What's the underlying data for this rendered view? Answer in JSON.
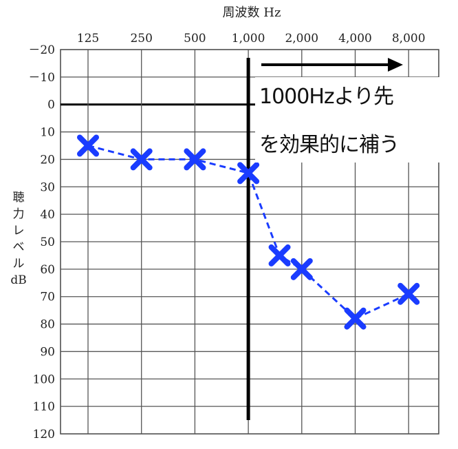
{
  "chart_data": {
    "type": "line",
    "title": "周波数 Hz",
    "ylabel_chars": [
      "聴",
      "力",
      "レ",
      "ベ",
      "ル",
      "dB"
    ],
    "x_tick_labels": [
      "125",
      "250",
      "500",
      "1,000",
      "2,000",
      "4,000",
      "8,000"
    ],
    "x_ticks_hz": [
      125,
      250,
      500,
      1000,
      2000,
      4000,
      8000
    ],
    "y_tick_labels": [
      "－20",
      "－10",
      "0",
      "10",
      "20",
      "30",
      "40",
      "50",
      "60",
      "70",
      "80",
      "90",
      "100",
      "110",
      "120"
    ],
    "ylim": [
      -20,
      120
    ],
    "y_inverted": true,
    "x_log_scale": true,
    "grid": true,
    "series": [
      {
        "marker": "x",
        "line_style": "dashed",
        "color": "#1a3cff",
        "x": [
          125,
          250,
          500,
          1000,
          1500,
          2000,
          4000,
          8000
        ],
        "y": [
          15,
          20,
          20,
          25,
          55,
          60,
          78,
          69
        ]
      }
    ],
    "annotations": {
      "divider_at_hz": 1000,
      "arrow_direction": "right",
      "line1": "1000Hzより先",
      "line2": "を効果的に補う"
    }
  }
}
